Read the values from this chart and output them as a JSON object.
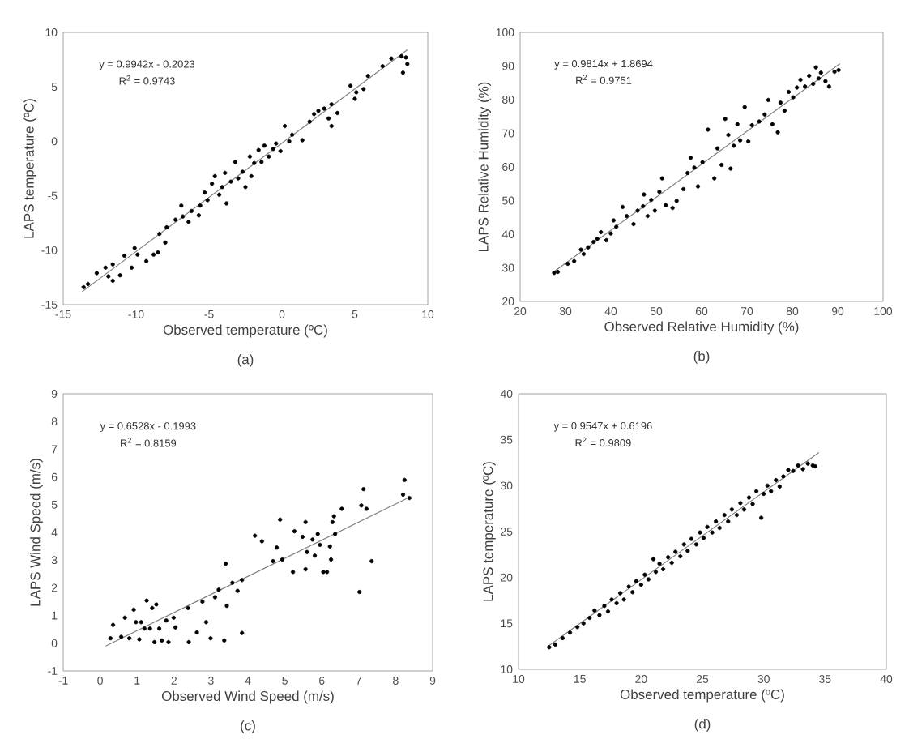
{
  "chart_data": [
    {
      "type": "scatter",
      "xlabel": "Observed temperature (ºC)",
      "ylabel": "LAPS  temperature (ºC)",
      "xlim": [
        -15,
        10
      ],
      "ylim": [
        -15,
        10
      ],
      "xticks": [
        -15,
        -10,
        -5,
        0,
        5,
        10
      ],
      "yticks": [
        -15,
        -10,
        -5,
        0,
        5,
        10
      ],
      "grid": false,
      "annotations": [
        "y = 0.9942x - 0.2023",
        "R$^{2}$ = 0.9743",
        "(a)"
      ],
      "series": [
        {
          "type": "scatter",
          "marker": "circle",
          "color": "#000000",
          "x": [
            -13.6,
            -13.3,
            -12.7,
            -12.1,
            -11.9,
            -11.6,
            -11.6,
            -11.1,
            -10.8,
            -10.3,
            -10.1,
            -9.9,
            -9.3,
            -8.8,
            -8.5,
            -8.4,
            -8.0,
            -7.9,
            -7.3,
            -6.9,
            -6.8,
            -6.4,
            -6.2,
            -5.7,
            -5.6,
            -5.3,
            -5.1,
            -4.8,
            -4.6,
            -4.3,
            -4.1,
            -3.9,
            -3.8,
            -3.5,
            -3.2,
            -3.0,
            -2.7,
            -2.5,
            -2.2,
            -2.1,
            -1.9,
            -1.6,
            -1.4,
            -1.2,
            -0.9,
            -0.6,
            -0.4,
            -0.1,
            0.2,
            0.5,
            0.7,
            1.4,
            1.9,
            2.2,
            2.5,
            2.9,
            3.2,
            3.4,
            3.4,
            3.8,
            4.7,
            5.0,
            5.1,
            5.6,
            5.9,
            6.9,
            7.5,
            8.2,
            8.3,
            8.5,
            8.6
          ],
          "values": [
            -13.4,
            -13.1,
            -12.1,
            -11.6,
            -12.4,
            -12.8,
            -11.3,
            -12.3,
            -10.5,
            -11.6,
            -9.8,
            -10.4,
            -11.0,
            -10.4,
            -10.2,
            -8.5,
            -9.3,
            -7.9,
            -7.2,
            -5.9,
            -6.9,
            -7.4,
            -6.4,
            -6.8,
            -5.9,
            -4.7,
            -5.4,
            -3.9,
            -3.2,
            -4.9,
            -4.2,
            -2.9,
            -5.7,
            -3.7,
            -1.9,
            -3.4,
            -2.8,
            -4.2,
            -1.4,
            -3.2,
            -2.0,
            -0.8,
            -1.9,
            -0.4,
            -1.4,
            -0.7,
            -0.2,
            -0.9,
            1.4,
            0.0,
            0.6,
            0.1,
            1.8,
            2.5,
            2.8,
            3.0,
            2.1,
            1.4,
            3.4,
            2.6,
            5.1,
            3.9,
            4.5,
            4.8,
            6.0,
            6.9,
            7.6,
            7.8,
            6.3,
            7.7,
            7.1
          ]
        },
        {
          "type": "line",
          "marker": "none",
          "color": "#808080",
          "x": [
            -13.7,
            8.6
          ],
          "values": [
            -13.8,
            8.4
          ]
        }
      ]
    },
    {
      "type": "scatter",
      "xlabel": "Observed Relative Humidity (%)",
      "ylabel": "LAPS  Relative Humidity (%)",
      "xlim": [
        20,
        100
      ],
      "ylim": [
        20,
        100
      ],
      "xticks": [
        20,
        30,
        40,
        50,
        60,
        70,
        80,
        90,
        100
      ],
      "yticks": [
        20,
        30,
        40,
        50,
        60,
        70,
        80,
        90,
        100
      ],
      "grid": false,
      "annotations": [
        "y = 0.9814x + 1.8694",
        "R$^{2}$ = 0.9751",
        "(b)"
      ],
      "series": [
        {
          "type": "scatter",
          "marker": "circle",
          "color": "#000000",
          "x": [
            27.5,
            28.3,
            30.5,
            31.9,
            33.4,
            34.0,
            35.0,
            36.2,
            37.0,
            37.8,
            39.0,
            40.0,
            40.6,
            41.2,
            42.6,
            43.5,
            45.0,
            45.9,
            47.1,
            47.3,
            48.1,
            48.9,
            49.7,
            50.7,
            51.3,
            52.1,
            53.6,
            54.5,
            56.0,
            56.9,
            57.6,
            58.4,
            59.2,
            60.2,
            61.4,
            62.8,
            63.5,
            64.4,
            65.2,
            65.9,
            66.4,
            67.1,
            67.9,
            68.5,
            69.5,
            70.3,
            71.1,
            72.7,
            73.9,
            74.7,
            75.6,
            76.8,
            77.4,
            78.3,
            79.2,
            80.2,
            81.0,
            81.8,
            82.8,
            83.7,
            84.6,
            85.2,
            85.8,
            86.3,
            87.3,
            88.1,
            89.3,
            90.2
          ],
          "values": [
            28.5,
            28.8,
            31.2,
            32.0,
            35.4,
            34.1,
            36.1,
            37.7,
            38.6,
            40.6,
            38.2,
            40.2,
            44.1,
            42.2,
            48.1,
            45.4,
            43.0,
            47.0,
            48.3,
            51.8,
            45.4,
            50.2,
            47.0,
            52.6,
            56.6,
            48.6,
            47.8,
            49.9,
            53.4,
            58.2,
            62.7,
            59.8,
            54.2,
            61.4,
            71.1,
            56.6,
            65.5,
            60.6,
            74.3,
            69.5,
            59.5,
            66.3,
            72.7,
            67.9,
            77.8,
            67.6,
            72.4,
            73.5,
            75.6,
            79.9,
            72.7,
            70.3,
            79.1,
            76.7,
            82.3,
            80.7,
            83.6,
            85.9,
            83.9,
            87.1,
            84.7,
            89.6,
            86.3,
            88.0,
            85.5,
            83.9,
            88.3,
            88.8
          ]
        },
        {
          "type": "line",
          "marker": "none",
          "color": "#808080",
          "x": [
            27.5,
            90.5
          ],
          "values": [
            28.9,
            90.7
          ]
        }
      ]
    },
    {
      "type": "scatter",
      "xlabel": "Observed Wind Speed (m/s)",
      "ylabel": "LAPS  Wind Speed (m/s)",
      "xlim": [
        -1,
        9
      ],
      "ylim": [
        -1,
        9
      ],
      "xticks": [
        -1,
        0,
        1,
        2,
        3,
        4,
        5,
        6,
        7,
        8,
        9
      ],
      "yticks": [
        -1,
        0,
        1,
        2,
        3,
        4,
        5,
        6,
        7,
        8,
        9
      ],
      "grid": false,
      "annotations": [
        "y = 0.6528x - 0.1993",
        "R$^{2}$ = 0.8159",
        "(c)"
      ],
      "series": [
        {
          "type": "scatter",
          "marker": "circle",
          "color": "#000000",
          "x": [
            0.28,
            0.35,
            0.57,
            0.67,
            0.79,
            0.91,
            0.97,
            1.06,
            1.11,
            1.2,
            1.26,
            1.35,
            1.41,
            1.47,
            1.52,
            1.6,
            1.67,
            1.79,
            1.85,
            1.99,
            2.04,
            2.38,
            2.4,
            2.62,
            2.77,
            2.87,
            2.99,
            3.11,
            3.21,
            3.36,
            3.4,
            3.43,
            3.58,
            3.72,
            3.84,
            3.84,
            4.19,
            4.38,
            4.68,
            4.78,
            4.87,
            4.93,
            5.26,
            5.22,
            5.48,
            5.56,
            5.56,
            5.6,
            5.75,
            5.81,
            5.89,
            5.95,
            6.04,
            6.14,
            6.22,
            6.25,
            6.29,
            6.33,
            6.36,
            6.54,
            7.07,
            7.13,
            7.21,
            7.02,
            7.35,
            8.24,
            8.2,
            8.37
          ],
          "values": [
            0.18,
            0.66,
            0.23,
            0.92,
            0.18,
            1.21,
            0.76,
            0.14,
            0.76,
            0.53,
            1.54,
            0.53,
            1.27,
            0.04,
            1.4,
            0.53,
            0.1,
            0.82,
            0.04,
            0.92,
            0.57,
            1.27,
            0.04,
            0.39,
            1.5,
            0.76,
            0.18,
            1.66,
            1.93,
            0.1,
            2.87,
            1.35,
            2.18,
            1.89,
            2.28,
            0.37,
            3.88,
            3.68,
            2.96,
            3.45,
            4.46,
            3.02,
            4.04,
            2.57,
            3.84,
            2.67,
            4.37,
            3.29,
            3.74,
            3.16,
            3.94,
            3.55,
            2.57,
            2.57,
            3.49,
            3.02,
            4.37,
            4.58,
            3.94,
            4.85,
            4.97,
            5.56,
            4.85,
            1.85,
            2.96,
            5.89,
            5.36,
            5.24
          ]
        },
        {
          "type": "line",
          "marker": "none",
          "color": "#808080",
          "x": [
            0.15,
            8.3
          ],
          "values": [
            -0.1,
            5.22
          ]
        }
      ]
    },
    {
      "type": "scatter",
      "xlabel": "Observed temperature (ºC)",
      "ylabel": "LAPS  temperature (ºC)",
      "xlim": [
        10,
        40
      ],
      "ylim": [
        10,
        40
      ],
      "xticks": [
        10,
        15,
        20,
        25,
        30,
        35,
        40
      ],
      "yticks": [
        10,
        15,
        20,
        25,
        30,
        35,
        40
      ],
      "grid": false,
      "annotations": [
        "y = 0.9547x + 0.6196",
        "R$^{2}$ = 0.9809",
        "(d)"
      ],
      "series": [
        {
          "type": "scatter",
          "marker": "circle",
          "color": "#000000",
          "x": [
            12.5,
            13.0,
            13.6,
            14.2,
            14.8,
            15.3,
            15.8,
            16.2,
            16.6,
            17.0,
            17.3,
            17.6,
            18.0,
            18.3,
            18.6,
            19.0,
            19.3,
            19.6,
            20.0,
            20.3,
            20.6,
            21.0,
            21.2,
            21.5,
            21.8,
            22.2,
            22.5,
            22.8,
            23.2,
            23.5,
            23.8,
            24.1,
            24.5,
            24.8,
            25.1,
            25.4,
            25.8,
            26.1,
            26.4,
            26.8,
            27.1,
            27.4,
            27.8,
            28.1,
            28.4,
            28.8,
            29.1,
            29.4,
            29.8,
            30.0,
            30.3,
            30.6,
            31.0,
            31.3,
            31.6,
            32.0,
            32.4,
            32.8,
            33.2,
            33.6,
            34.0,
            34.2
          ],
          "values": [
            12.4,
            12.7,
            13.4,
            14.0,
            14.6,
            15.0,
            15.6,
            16.4,
            15.9,
            16.9,
            16.3,
            17.6,
            17.2,
            18.3,
            17.6,
            19.0,
            18.4,
            19.6,
            19.2,
            20.3,
            19.8,
            22.0,
            20.6,
            21.5,
            20.9,
            22.2,
            21.6,
            22.8,
            22.3,
            23.6,
            22.9,
            24.2,
            23.6,
            24.9,
            24.3,
            25.5,
            24.9,
            26.1,
            25.4,
            26.8,
            26.1,
            27.4,
            26.8,
            28.1,
            27.4,
            28.7,
            28.0,
            29.4,
            26.5,
            29.1,
            30.0,
            29.4,
            30.6,
            29.9,
            31.0,
            31.7,
            31.6,
            32.2,
            31.8,
            32.4,
            32.2,
            32.1
          ]
        },
        {
          "type": "line",
          "marker": "none",
          "color": "#808080",
          "x": [
            12.5,
            34.5
          ],
          "values": [
            12.6,
            33.6
          ]
        }
      ]
    }
  ]
}
